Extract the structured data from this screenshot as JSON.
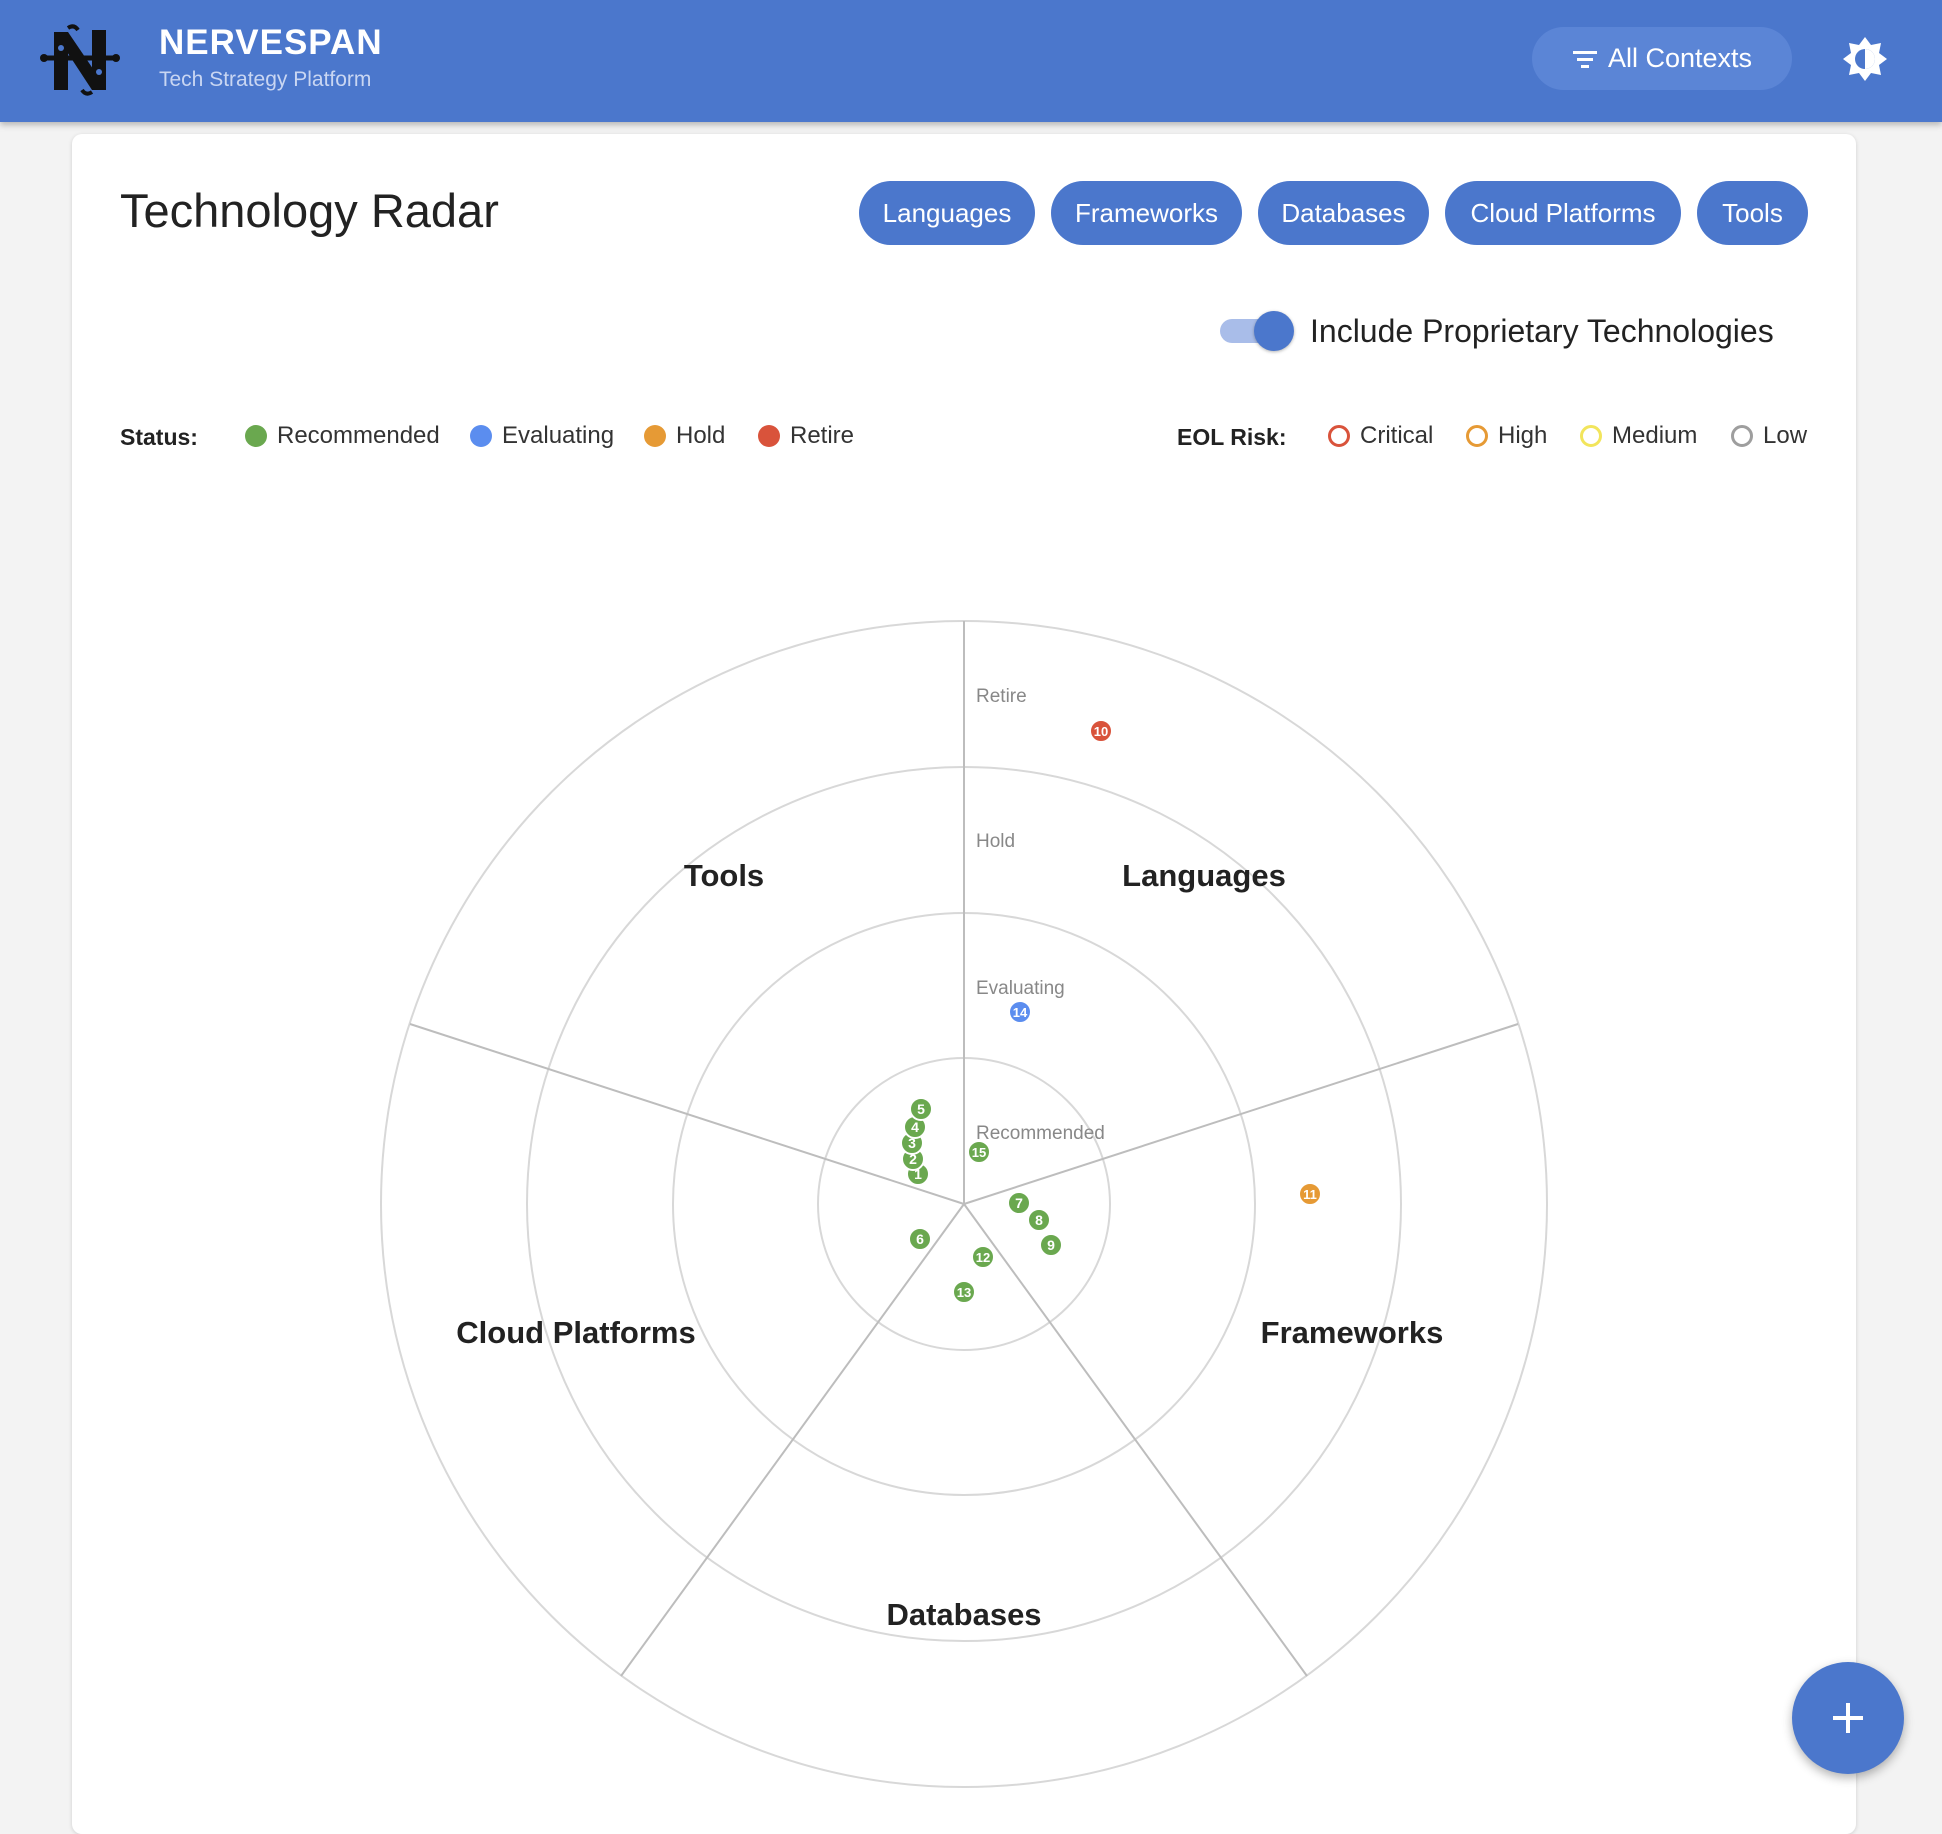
{
  "app": {
    "title": "NERVESPAN",
    "subtitle": "Tech Strategy Platform",
    "context_button": "All Contexts",
    "theme_icon": "brightness-icon"
  },
  "page": {
    "title": "Technology Radar",
    "tabs": [
      "Languages",
      "Frameworks",
      "Databases",
      "Cloud Platforms",
      "Tools"
    ],
    "toggle": {
      "label": "Include Proprietary Technologies",
      "on": true
    }
  },
  "legend": {
    "status_label": "Status:",
    "status": [
      {
        "label": "Recommended",
        "color": "#6aa84f"
      },
      {
        "label": "Evaluating",
        "color": "#5b8def"
      },
      {
        "label": "Hold",
        "color": "#e69a35"
      },
      {
        "label": "Retire",
        "color": "#d9533b"
      }
    ],
    "eol_label": "EOL Risk:",
    "eol": [
      {
        "label": "Critical",
        "color": "#d9533b"
      },
      {
        "label": "High",
        "color": "#e69a35"
      },
      {
        "label": "Medium",
        "color": "#f2e55c"
      },
      {
        "label": "Low",
        "color": "#9e9e9e"
      }
    ]
  },
  "radar": {
    "rings": [
      "Recommended",
      "Evaluating",
      "Hold",
      "Retire"
    ],
    "quadrants": [
      "Languages",
      "Frameworks",
      "Databases",
      "Cloud Platforms",
      "Tools"
    ],
    "blips": [
      {
        "id": "1",
        "status": "Recommended",
        "quadrant": "Tools"
      },
      {
        "id": "2",
        "status": "Recommended",
        "quadrant": "Tools"
      },
      {
        "id": "3",
        "status": "Recommended",
        "quadrant": "Tools"
      },
      {
        "id": "4",
        "status": "Recommended",
        "quadrant": "Tools"
      },
      {
        "id": "5",
        "status": "Recommended",
        "quadrant": "Tools"
      },
      {
        "id": "6",
        "status": "Recommended",
        "quadrant": "Cloud Platforms"
      },
      {
        "id": "7",
        "status": "Recommended",
        "quadrant": "Frameworks"
      },
      {
        "id": "8",
        "status": "Recommended",
        "quadrant": "Frameworks"
      },
      {
        "id": "9",
        "status": "Recommended",
        "quadrant": "Frameworks"
      },
      {
        "id": "10",
        "status": "Retire",
        "quadrant": "Languages"
      },
      {
        "id": "11",
        "status": "Hold",
        "quadrant": "Frameworks"
      },
      {
        "id": "12",
        "status": "Recommended",
        "quadrant": "Databases"
      },
      {
        "id": "13",
        "status": "Recommended",
        "quadrant": "Databases"
      },
      {
        "id": "14",
        "status": "Evaluating",
        "quadrant": "Languages"
      },
      {
        "id": "15",
        "status": "Recommended",
        "quadrant": "Languages"
      }
    ]
  }
}
